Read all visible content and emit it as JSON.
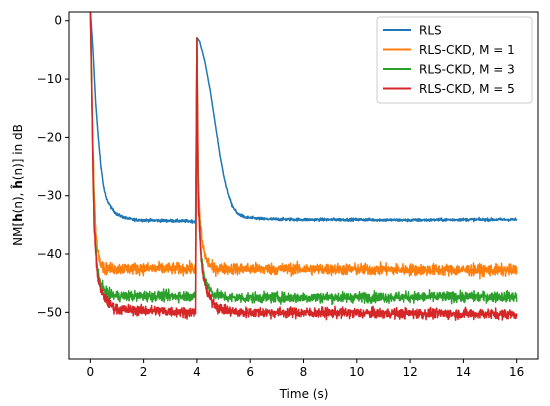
{
  "chart_data": {
    "type": "line",
    "title": "",
    "xlabel": "Time (s)",
    "ylabel_parts": {
      "prefix": "NM[",
      "h1": "h",
      "arg1": "(n), ",
      "h2": "ĥ",
      "arg2": "(n)] in dB"
    },
    "xlim": [
      -0.8,
      16.8
    ],
    "ylim": [
      -58,
      1.5
    ],
    "x_ticks": [
      0,
      2,
      4,
      6,
      8,
      10,
      12,
      14,
      16
    ],
    "y_ticks": [
      0,
      -10,
      -20,
      -30,
      -40,
      -50
    ],
    "x_tick_labels": [
      "0",
      "2",
      "4",
      "6",
      "8",
      "10",
      "12",
      "14",
      "16"
    ],
    "y_tick_labels": [
      "0",
      "−10",
      "−20",
      "−30",
      "−40",
      "−50"
    ],
    "grid": false,
    "legend_position": "top-right",
    "series": [
      {
        "name": "RLS",
        "color": "#1f77b4",
        "noise_amplitude": 0.25,
        "points": [
          [
            0,
            2
          ],
          [
            0.1,
            -5
          ],
          [
            0.2,
            -14
          ],
          [
            0.3,
            -20
          ],
          [
            0.4,
            -25
          ],
          [
            0.5,
            -28.5
          ],
          [
            0.6,
            -30.5
          ],
          [
            0.8,
            -32.2
          ],
          [
            1.0,
            -33.2
          ],
          [
            1.3,
            -33.8
          ],
          [
            1.6,
            -34.1
          ],
          [
            2.0,
            -34.2
          ],
          [
            3.0,
            -34.3
          ],
          [
            3.95,
            -34.4
          ],
          [
            4.0,
            -3
          ],
          [
            4.1,
            -3.5
          ],
          [
            4.3,
            -7
          ],
          [
            4.5,
            -12
          ],
          [
            4.7,
            -18
          ],
          [
            4.9,
            -24
          ],
          [
            5.1,
            -28.5
          ],
          [
            5.3,
            -31.5
          ],
          [
            5.5,
            -33
          ],
          [
            5.8,
            -33.7
          ],
          [
            6.5,
            -34
          ],
          [
            8,
            -34.1
          ],
          [
            10,
            -34.1
          ],
          [
            12,
            -34.2
          ],
          [
            14,
            -34.1
          ],
          [
            16,
            -34.1
          ]
        ]
      },
      {
        "name": "RLS-CKD, M = 1",
        "color": "#ff7f0e",
        "noise_amplitude": 1.0,
        "points": [
          [
            0,
            2
          ],
          [
            0.05,
            -12
          ],
          [
            0.1,
            -22
          ],
          [
            0.15,
            -30
          ],
          [
            0.2,
            -36
          ],
          [
            0.3,
            -40
          ],
          [
            0.5,
            -42.5
          ],
          [
            1.0,
            -42.5
          ],
          [
            3.95,
            -42.5
          ],
          [
            4.0,
            -3.5
          ],
          [
            4.05,
            -26
          ],
          [
            4.1,
            -33
          ],
          [
            4.2,
            -38
          ],
          [
            4.35,
            -41
          ],
          [
            4.6,
            -42.5
          ],
          [
            16,
            -42.8
          ]
        ]
      },
      {
        "name": "RLS-CKD, M = 3",
        "color": "#2ca02c",
        "noise_amplitude": 0.9,
        "points": [
          [
            0,
            2
          ],
          [
            0.05,
            -10
          ],
          [
            0.1,
            -25
          ],
          [
            0.15,
            -35
          ],
          [
            0.25,
            -42
          ],
          [
            0.4,
            -45.5
          ],
          [
            0.7,
            -47
          ],
          [
            1.0,
            -47.2
          ],
          [
            3.95,
            -47.2
          ],
          [
            4.0,
            -3
          ],
          [
            4.05,
            -30
          ],
          [
            4.15,
            -40
          ],
          [
            4.3,
            -44.5
          ],
          [
            4.6,
            -46.8
          ],
          [
            5.2,
            -47.5
          ],
          [
            16,
            -47.3
          ]
        ]
      },
      {
        "name": "RLS-CKD, M = 5",
        "color": "#d62728",
        "noise_amplitude": 0.9,
        "points": [
          [
            0,
            2
          ],
          [
            0.05,
            -10
          ],
          [
            0.1,
            -26
          ],
          [
            0.15,
            -36
          ],
          [
            0.25,
            -43
          ],
          [
            0.4,
            -46.5
          ],
          [
            0.7,
            -48.5
          ],
          [
            1.0,
            -49.5
          ],
          [
            3.95,
            -50
          ],
          [
            4.0,
            -3
          ],
          [
            4.05,
            -32
          ],
          [
            4.2,
            -43
          ],
          [
            4.4,
            -47
          ],
          [
            4.8,
            -49.3
          ],
          [
            5.5,
            -50
          ],
          [
            16,
            -50.3
          ]
        ]
      }
    ]
  }
}
